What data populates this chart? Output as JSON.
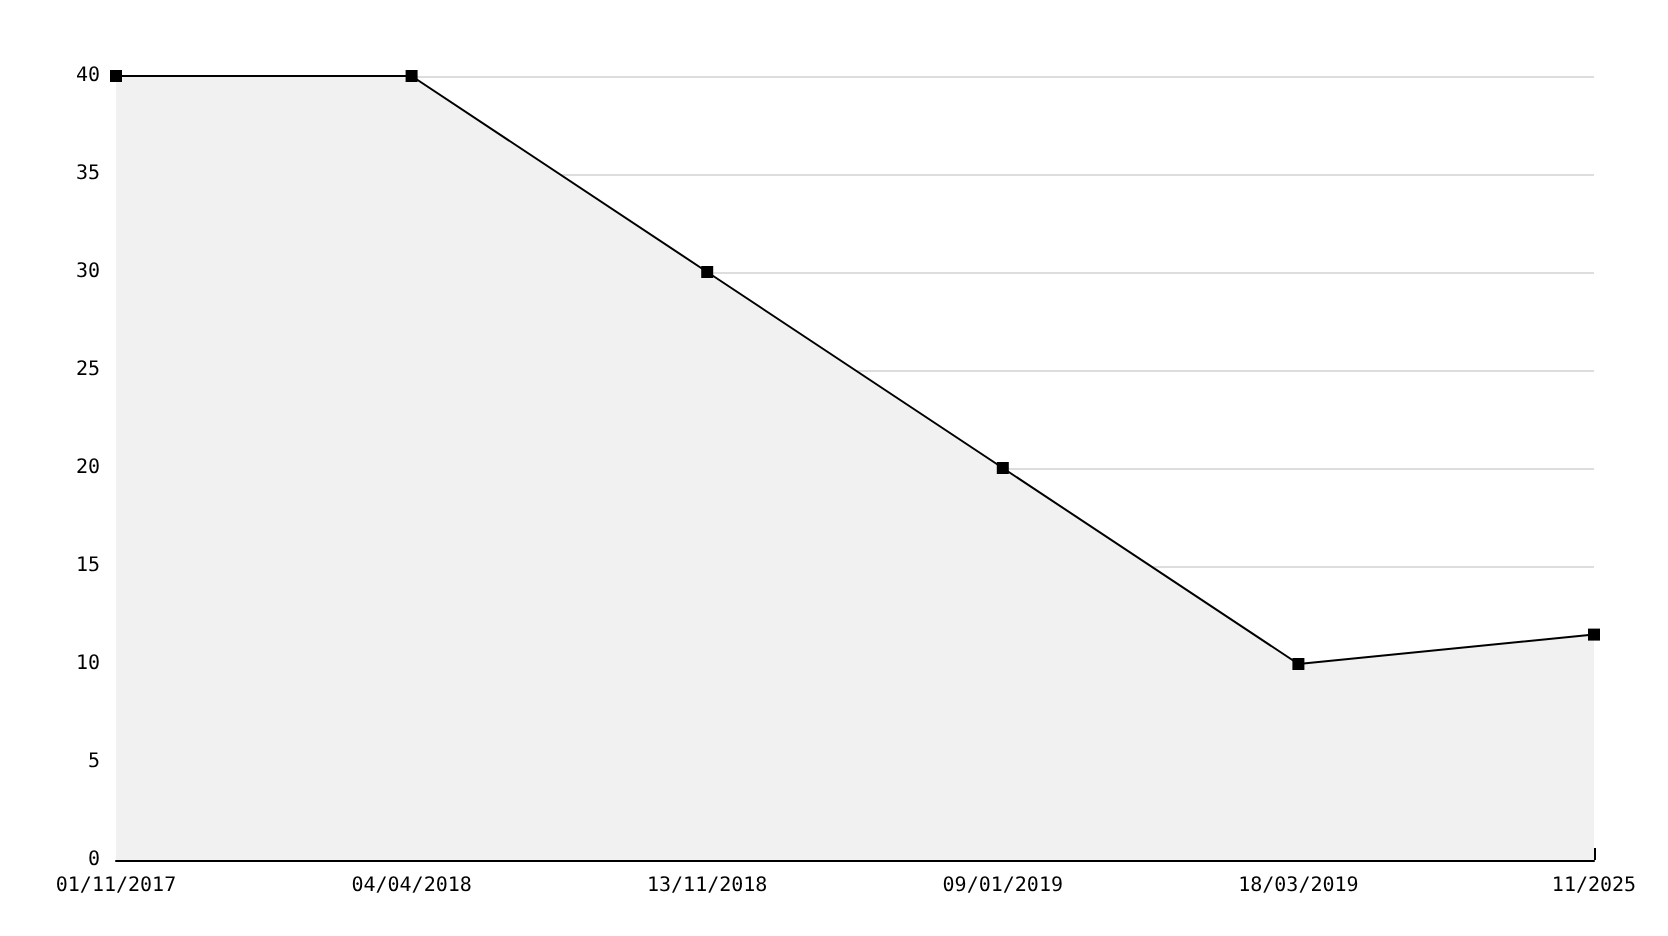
{
  "chart_data": {
    "type": "area",
    "categories": [
      "01/11/2017",
      "04/04/2018",
      "13/11/2018",
      "09/01/2019",
      "18/03/2019",
      "11/2025"
    ],
    "series": [
      {
        "color": "#000000",
        "values": [
          40,
          40,
          30,
          20,
          10,
          11.5
        ]
      }
    ],
    "ylim": [
      0,
      40
    ],
    "yticks": [
      0,
      5,
      10,
      15,
      20,
      25,
      30,
      35,
      40
    ],
    "grid": "y",
    "marker": "square",
    "line_style": "solid"
  }
}
